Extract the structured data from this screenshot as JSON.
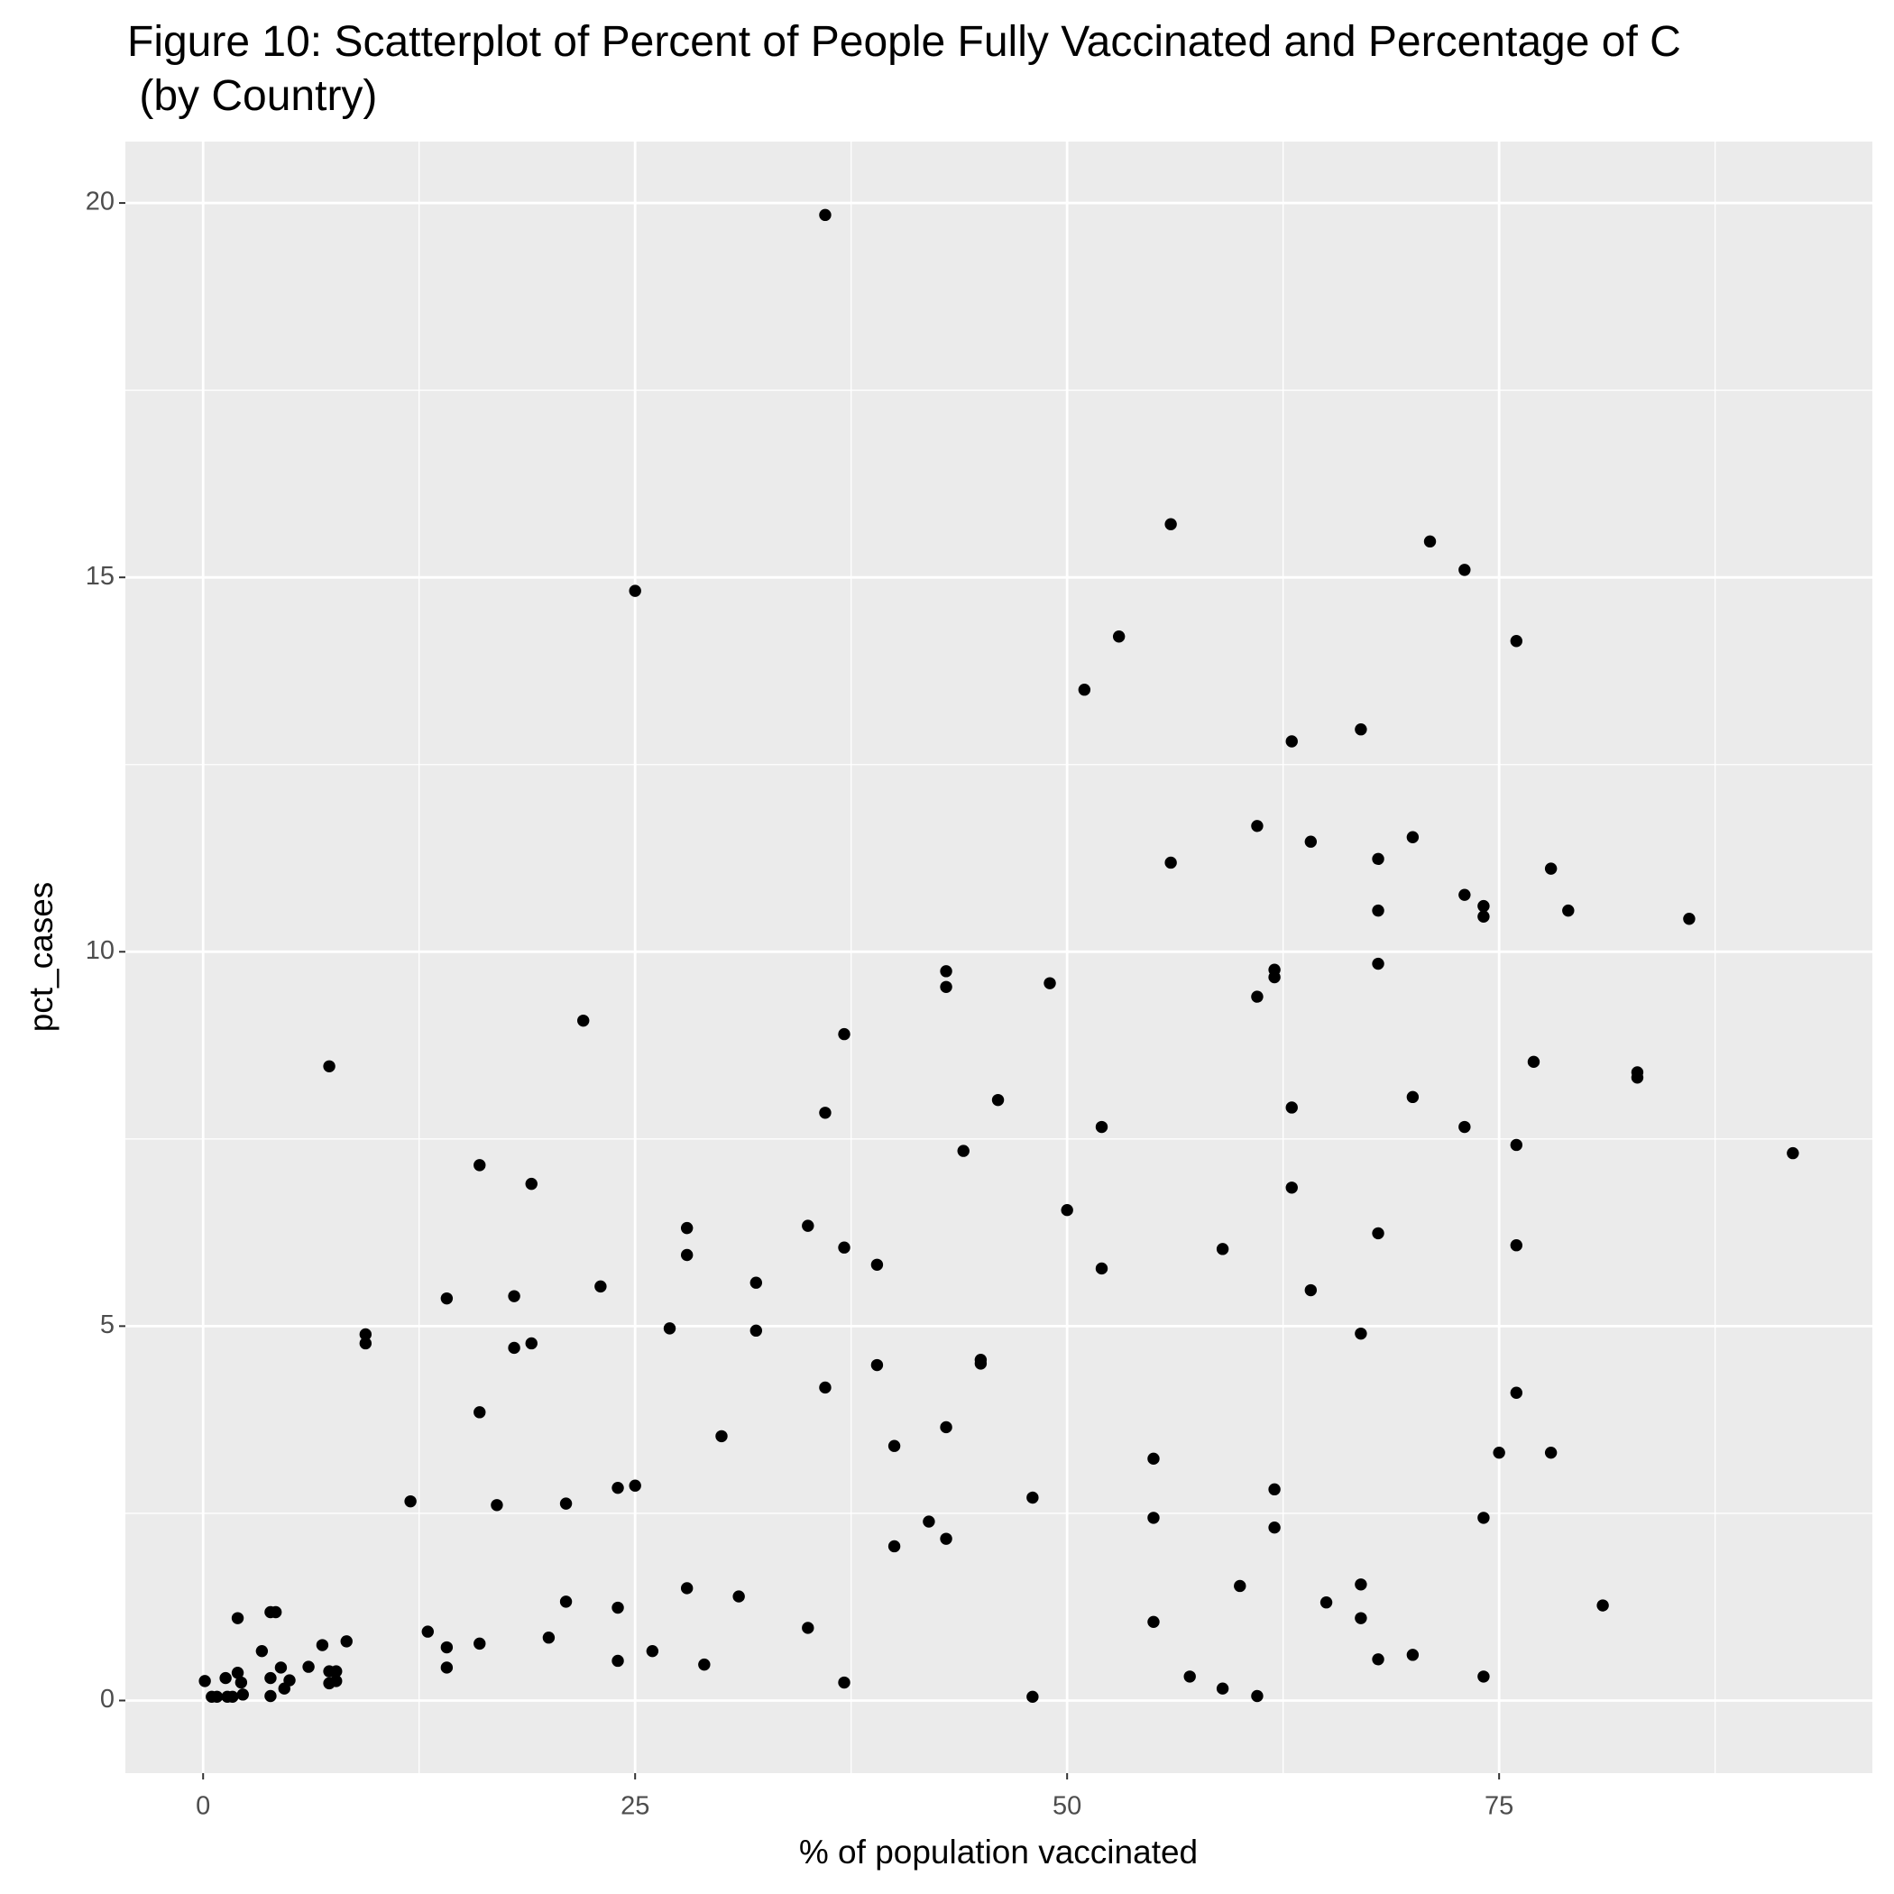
{
  "chart_data": {
    "type": "scatter",
    "title": [
      "Figure 10: Scatterplot of Percent of People Fully Vaccinated and Percentage of C",
      " (by Country)"
    ],
    "x_label": "% of population vaccinated",
    "y_label": "pct_cases",
    "color": "#000000",
    "grid": true,
    "xlim": [
      -4.5,
      96.6
    ],
    "ylim": [
      -0.97,
      20.82
    ],
    "xticks": [
      0,
      25,
      50,
      75
    ],
    "yticks": [
      0,
      5,
      10,
      15,
      20
    ],
    "xminor": [
      12.5,
      37.5,
      62.5,
      87.5
    ],
    "yminor": [
      2.5,
      7.5,
      12.5,
      17.5
    ],
    "x": [
      0.1,
      0.5,
      0.8,
      1.3,
      1.4,
      1.7,
      2.0,
      2.0,
      2.2,
      2.3,
      3.4,
      3.9,
      4.2,
      3.9,
      3.9,
      4.5,
      4.7,
      5.0,
      6.1,
      6.9,
      7.3,
      7.3,
      7.7,
      7.3,
      7.7,
      8.3,
      9.4,
      9.4,
      12.0,
      13.0,
      14.1,
      14.1,
      14.1,
      16.0,
      16.0,
      16.0,
      17.0,
      18.0,
      18.0,
      19.0,
      19.0,
      20.0,
      21.0,
      21.0,
      22.0,
      23.0,
      24.0,
      24.0,
      24.0,
      25.0,
      25.0,
      26.0,
      27.0,
      28.0,
      28.0,
      28.0,
      29.0,
      30.0,
      31.0,
      32.0,
      32.0,
      35.0,
      35.0,
      36.0,
      36.0,
      36.0,
      37.1,
      37.1,
      37.1,
      39.0,
      39.0,
      40.0,
      40.0,
      42.0,
      43.0,
      43.0,
      43.0,
      43.0,
      44.0,
      45.0,
      45.0,
      46.0,
      48.0,
      48.0,
      49.0,
      50.0,
      51.0,
      52.0,
      52.0,
      53.0,
      55.0,
      55.0,
      55.0,
      56.0,
      56.0,
      57.1,
      59.0,
      59.0,
      60.0,
      61.0,
      61.0,
      61.0,
      62.0,
      62.0,
      62.0,
      62.0,
      63.0,
      63.0,
      63.0,
      64.1,
      64.1,
      65.0,
      67.0,
      67.0,
      67.0,
      67.0,
      68.0,
      68.0,
      68.0,
      68.0,
      68.0,
      70.0,
      70.0,
      70.0,
      71.0,
      73.0,
      73.0,
      73.0,
      74.1,
      74.1,
      74.1,
      74.1,
      75.0,
      76.0,
      76.0,
      76.0,
      76.0,
      77.0,
      78.0,
      78.0,
      79.0,
      81.0,
      83.0,
      83.0,
      86.0,
      92.0
    ],
    "values": [
      0.26,
      0.05,
      0.05,
      0.3,
      0.05,
      0.05,
      0.37,
      1.1,
      0.24,
      0.08,
      0.66,
      1.18,
      1.18,
      0.3,
      0.06,
      0.44,
      0.16,
      0.27,
      0.45,
      0.74,
      8.47,
      0.39,
      0.39,
      0.23,
      0.26,
      0.79,
      4.89,
      4.77,
      2.66,
      0.92,
      5.37,
      0.71,
      0.44,
      7.15,
      3.85,
      0.76,
      2.61,
      5.4,
      4.71,
      6.9,
      4.77,
      0.84,
      2.63,
      1.32,
      9.08,
      5.53,
      2.84,
      1.24,
      0.53,
      14.82,
      2.87,
      0.66,
      4.97,
      6.31,
      5.95,
      1.5,
      0.48,
      3.53,
      1.39,
      5.58,
      4.94,
      6.34,
      0.97,
      19.84,
      7.85,
      4.18,
      8.9,
      6.05,
      0.24,
      5.82,
      4.48,
      3.4,
      2.06,
      2.39,
      9.74,
      9.53,
      3.65,
      2.16,
      7.34,
      4.55,
      4.5,
      8.02,
      2.71,
      0.05,
      9.58,
      6.55,
      13.5,
      7.66,
      5.77,
      14.21,
      3.23,
      2.44,
      1.05,
      15.71,
      11.19,
      0.32,
      6.03,
      0.16,
      1.53,
      11.68,
      9.4,
      0.06,
      9.76,
      9.66,
      2.82,
      2.31,
      12.81,
      7.92,
      6.85,
      11.47,
      5.48,
      1.31,
      12.97,
      4.9,
      1.55,
      1.1,
      11.24,
      10.55,
      9.84,
      6.24,
      0.55,
      11.53,
      8.06,
      0.61,
      15.48,
      15.1,
      10.76,
      7.66,
      10.61,
      10.47,
      2.44,
      0.32,
      3.31,
      14.15,
      7.42,
      6.08,
      4.11,
      8.53,
      11.11,
      3.31,
      10.55,
      1.27,
      8.39,
      8.32,
      10.44,
      7.31
    ]
  }
}
